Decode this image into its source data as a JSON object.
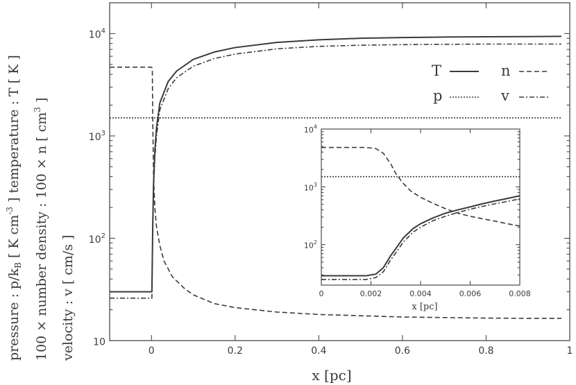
{
  "chart_data": [
    {
      "type": "line",
      "xlabel": "x [pc]",
      "ylabel_lines": [
        "pressure : p/k_B [ K cm^-3 ]     temperature : T [ K ]",
        "100 × number density : 100 × n [ cm^3 ]",
        "velocity : v [ cm/s ]"
      ],
      "xlim": [
        -0.1,
        1.0
      ],
      "ylim": [
        10,
        20000
      ],
      "yscale": "log",
      "xticks": [
        0,
        0.2,
        0.4,
        0.6,
        0.8,
        1
      ],
      "xtick_labels": [
        "0",
        "0.2",
        "0.4",
        "0.6",
        "0.8",
        "1"
      ],
      "yticks": [
        10,
        100,
        1000,
        10000
      ],
      "ytick_labels": [
        {
          "base": "10",
          "sup": ""
        },
        {
          "base": "10",
          "sup": "2"
        },
        {
          "base": "10",
          "sup": "3"
        },
        {
          "base": "10",
          "sup": "4"
        }
      ],
      "legend": {
        "placement": "top-right",
        "items": [
          {
            "label": "T",
            "series": "T"
          },
          {
            "label": "n",
            "series": "n"
          },
          {
            "label": "p",
            "series": "p"
          },
          {
            "label": "v",
            "series": "v"
          }
        ]
      },
      "series": [
        {
          "name": "T",
          "style": "solid",
          "x": [
            -0.1,
            0.0,
            0.001,
            0.003,
            0.005,
            0.008,
            0.012,
            0.02,
            0.04,
            0.06,
            0.1,
            0.15,
            0.2,
            0.3,
            0.4,
            0.5,
            0.6,
            0.7,
            0.8,
            0.9,
            0.98
          ],
          "y": [
            30,
            30,
            30,
            130,
            350,
            700,
            1200,
            2100,
            3400,
            4300,
            5600,
            6600,
            7300,
            8200,
            8700,
            9000,
            9150,
            9250,
            9300,
            9350,
            9400
          ]
        },
        {
          "name": "v",
          "style": "dashdot",
          "x": [
            -0.1,
            0.0,
            0.001,
            0.003,
            0.005,
            0.008,
            0.012,
            0.02,
            0.04,
            0.06,
            0.1,
            0.15,
            0.2,
            0.3,
            0.4,
            0.5,
            0.6,
            0.7,
            0.8,
            0.9,
            0.98
          ],
          "y": [
            26,
            26,
            26,
            110,
            300,
            600,
            1000,
            1800,
            2900,
            3700,
            4800,
            5700,
            6300,
            7100,
            7500,
            7700,
            7800,
            7850,
            7900,
            7900,
            7900
          ]
        },
        {
          "name": "n",
          "style": "dashed",
          "x": [
            -0.1,
            0.0,
            0.002,
            0.003,
            0.005,
            0.008,
            0.012,
            0.02,
            0.03,
            0.05,
            0.08,
            0.1,
            0.15,
            0.2,
            0.3,
            0.4,
            0.5,
            0.6,
            0.7,
            0.8,
            0.9,
            0.98
          ],
          "y": [
            4700,
            4700,
            4600,
            1500,
            400,
            200,
            130,
            85,
            60,
            42,
            32,
            28,
            23,
            21,
            19,
            18,
            17.5,
            17,
            16.8,
            16.6,
            16.5,
            16.5
          ]
        },
        {
          "name": "p",
          "style": "dotted",
          "x": [
            -0.1,
            0.98
          ],
          "y": [
            1500,
            1500
          ]
        }
      ]
    },
    {
      "type": "line",
      "xlabel": "x [pc]",
      "xlim": [
        0,
        0.008
      ],
      "ylim": [
        20,
        10000
      ],
      "yscale": "log",
      "xticks": [
        0,
        0.002,
        0.004,
        0.006,
        0.008
      ],
      "xtick_labels": [
        "0",
        "0.002",
        "0.004",
        "0.006",
        "0.008"
      ],
      "yticks": [
        100,
        1000,
        10000
      ],
      "ytick_labels": [
        {
          "base": "10",
          "sup": "2"
        },
        {
          "base": "10",
          "sup": "3"
        },
        {
          "base": "10",
          "sup": "4"
        }
      ],
      "series": [
        {
          "name": "T",
          "style": "solid",
          "x": [
            0,
            0.0018,
            0.0022,
            0.0025,
            0.0028,
            0.003,
            0.0033,
            0.0037,
            0.004,
            0.0045,
            0.005,
            0.0055,
            0.006,
            0.0065,
            0.007,
            0.0075,
            0.008
          ],
          "y": [
            29,
            29,
            31,
            40,
            65,
            85,
            130,
            190,
            230,
            290,
            350,
            400,
            450,
            510,
            570,
            630,
            700
          ]
        },
        {
          "name": "v",
          "style": "dashdot",
          "x": [
            0,
            0.0018,
            0.0022,
            0.0025,
            0.0028,
            0.003,
            0.0033,
            0.0037,
            0.004,
            0.0045,
            0.005,
            0.0055,
            0.006,
            0.0065,
            0.007,
            0.0075,
            0.008
          ],
          "y": [
            25,
            25,
            27,
            34,
            55,
            72,
            110,
            165,
            200,
            260,
            310,
            360,
            410,
            460,
            510,
            560,
            620
          ]
        },
        {
          "name": "n",
          "style": "dashed",
          "x": [
            0,
            0.0018,
            0.0022,
            0.0025,
            0.0028,
            0.003,
            0.0033,
            0.0036,
            0.004,
            0.0045,
            0.005,
            0.0055,
            0.006,
            0.0065,
            0.007,
            0.0075,
            0.008
          ],
          "y": [
            4800,
            4800,
            4600,
            3800,
            2500,
            1700,
            1150,
            850,
            660,
            520,
            420,
            350,
            310,
            280,
            255,
            230,
            210
          ]
        },
        {
          "name": "p",
          "style": "dotted",
          "x": [
            0,
            0.008
          ],
          "y": [
            1500,
            1500
          ]
        }
      ]
    }
  ]
}
